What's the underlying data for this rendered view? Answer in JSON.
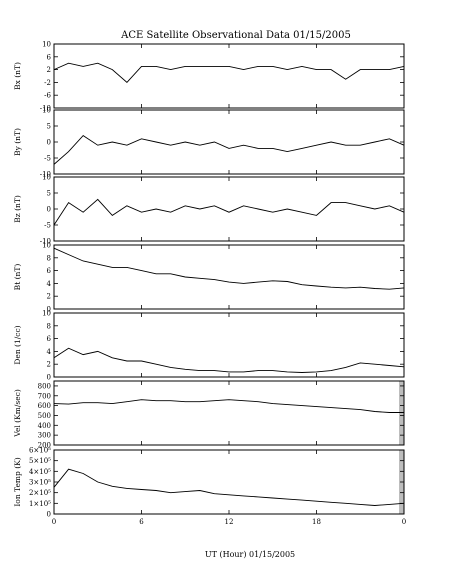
{
  "title": "ACE Satellite Observational Data   01/15/2005",
  "xlabel": "UT (Hour)   01/15/2005",
  "colors": {
    "line": "#000000",
    "frame": "#000000",
    "gap": "#bdbdbd"
  },
  "chart_data": [
    {
      "type": "line",
      "name": "bx",
      "ylabel": "Bx (nT)",
      "ylim": [
        -10,
        10
      ],
      "yticks": [
        "10",
        "6",
        "2",
        "-2",
        "-6",
        "-10"
      ],
      "yticks_values": [
        10,
        6,
        2,
        -2,
        -6,
        -10
      ],
      "x": [
        0,
        1,
        2,
        3,
        4,
        5,
        6,
        7,
        8,
        9,
        10,
        11,
        12,
        13,
        14,
        15,
        16,
        17,
        18,
        19,
        20,
        21,
        22,
        23,
        24
      ],
      "values": [
        2,
        4,
        3,
        4,
        2,
        -2,
        3,
        3,
        2,
        3,
        3,
        3,
        3,
        2,
        3,
        3,
        2,
        3,
        2,
        2,
        -1,
        2,
        2,
        2,
        3
      ]
    },
    {
      "type": "line",
      "name": "by",
      "ylabel": "By (nT)",
      "ylim": [
        -10,
        10
      ],
      "yticks": [
        "10",
        "5",
        "0",
        "-5",
        "-10"
      ],
      "yticks_values": [
        10,
        5,
        0,
        -5,
        -10
      ],
      "x": [
        0,
        1,
        2,
        3,
        4,
        5,
        6,
        7,
        8,
        9,
        10,
        11,
        12,
        13,
        14,
        15,
        16,
        17,
        18,
        19,
        20,
        21,
        22,
        23,
        24
      ],
      "values": [
        -7,
        -3,
        2,
        -1,
        0,
        -1,
        1,
        0,
        -1,
        0,
        -1,
        0,
        -2,
        -1,
        -2,
        -2,
        -3,
        -2,
        -1,
        0,
        -1,
        -1,
        0,
        1,
        -1
      ]
    },
    {
      "type": "line",
      "name": "bz",
      "ylabel": "Bz (nT)",
      "ylim": [
        -10,
        10
      ],
      "yticks": [
        "10",
        "5",
        "0",
        "-5",
        "-10"
      ],
      "yticks_values": [
        10,
        5,
        0,
        -5,
        -10
      ],
      "x": [
        0,
        1,
        2,
        3,
        4,
        5,
        6,
        7,
        8,
        9,
        10,
        11,
        12,
        13,
        14,
        15,
        16,
        17,
        18,
        19,
        20,
        21,
        22,
        23,
        24
      ],
      "values": [
        -5,
        2,
        -1,
        3,
        -2,
        1,
        -1,
        0,
        -1,
        1,
        0,
        1,
        -1,
        1,
        0,
        -1,
        0,
        -1,
        -2,
        2,
        2,
        1,
        0,
        1,
        -1
      ]
    },
    {
      "type": "line",
      "name": "bt",
      "ylabel": "Bt (nT)",
      "ylim": [
        0,
        10
      ],
      "yticks": [
        "10",
        "8",
        "6",
        "4",
        "2",
        "0"
      ],
      "yticks_values": [
        10,
        8,
        6,
        4,
        2,
        0
      ],
      "x": [
        0,
        1,
        2,
        3,
        4,
        5,
        6,
        7,
        8,
        9,
        10,
        11,
        12,
        13,
        14,
        15,
        16,
        17,
        18,
        19,
        20,
        21,
        22,
        23,
        24
      ],
      "values": [
        9.5,
        8.5,
        7.5,
        7,
        6.5,
        6.5,
        6,
        5.5,
        5.5,
        5,
        4.8,
        4.6,
        4.2,
        4,
        4.2,
        4.4,
        4.3,
        3.8,
        3.6,
        3.4,
        3.3,
        3.4,
        3.2,
        3.1,
        3.3
      ]
    },
    {
      "type": "line",
      "name": "den",
      "ylabel": "Den (1/cc)",
      "ylim": [
        0,
        10
      ],
      "yticks": [
        "10",
        "8",
        "6",
        "4",
        "2",
        "0"
      ],
      "yticks_values": [
        10,
        8,
        6,
        4,
        2,
        0
      ],
      "x": [
        0,
        1,
        2,
        3,
        4,
        5,
        6,
        7,
        8,
        9,
        10,
        11,
        12,
        13,
        14,
        15,
        16,
        17,
        18,
        19,
        20,
        21,
        22,
        23,
        24
      ],
      "values": [
        3,
        4.5,
        3.5,
        4,
        3,
        2.5,
        2.5,
        2,
        1.5,
        1.2,
        1,
        1,
        0.8,
        0.8,
        1,
        1,
        0.8,
        0.7,
        0.8,
        1,
        1.5,
        2.2,
        2,
        1.8,
        1.6
      ]
    },
    {
      "type": "line",
      "name": "vel",
      "ylabel": "Vel (Km/sec)",
      "ylim": [
        200,
        850
      ],
      "yticks": [
        "800",
        "700",
        "600",
        "500",
        "400",
        "300",
        "200"
      ],
      "yticks_values": [
        800,
        700,
        600,
        500,
        400,
        300,
        200
      ],
      "x": [
        0,
        1,
        2,
        3,
        4,
        5,
        6,
        7,
        8,
        9,
        10,
        11,
        12,
        13,
        14,
        15,
        16,
        17,
        18,
        19,
        20,
        21,
        22,
        23,
        24
      ],
      "values": [
        620,
        615,
        630,
        630,
        620,
        640,
        660,
        650,
        650,
        640,
        640,
        650,
        660,
        650,
        640,
        620,
        610,
        600,
        590,
        580,
        570,
        560,
        540,
        530,
        530
      ]
    },
    {
      "type": "line",
      "name": "temp",
      "ylabel": "Ion Temp (K)",
      "ylim": [
        0,
        600000
      ],
      "yticks": [
        "6×10⁵",
        "5×10⁵",
        "4×10⁵",
        "3×10⁵",
        "2×10⁵",
        "1×10⁵",
        "0"
      ],
      "yticks_values": [
        600000,
        500000,
        400000,
        300000,
        200000,
        100000,
        0
      ],
      "x": [
        0,
        1,
        2,
        3,
        4,
        5,
        6,
        7,
        8,
        9,
        10,
        11,
        12,
        13,
        14,
        15,
        16,
        17,
        18,
        19,
        20,
        21,
        22,
        23,
        24
      ],
      "values": [
        250000,
        420000,
        380000,
        300000,
        260000,
        240000,
        230000,
        220000,
        200000,
        210000,
        220000,
        190000,
        180000,
        170000,
        160000,
        150000,
        140000,
        130000,
        120000,
        110000,
        100000,
        90000,
        80000,
        90000,
        100000
      ]
    }
  ],
  "xticks": [
    "0",
    "6",
    "12",
    "18",
    "0"
  ],
  "xticks_hours": [
    0,
    6,
    12,
    18,
    24
  ]
}
